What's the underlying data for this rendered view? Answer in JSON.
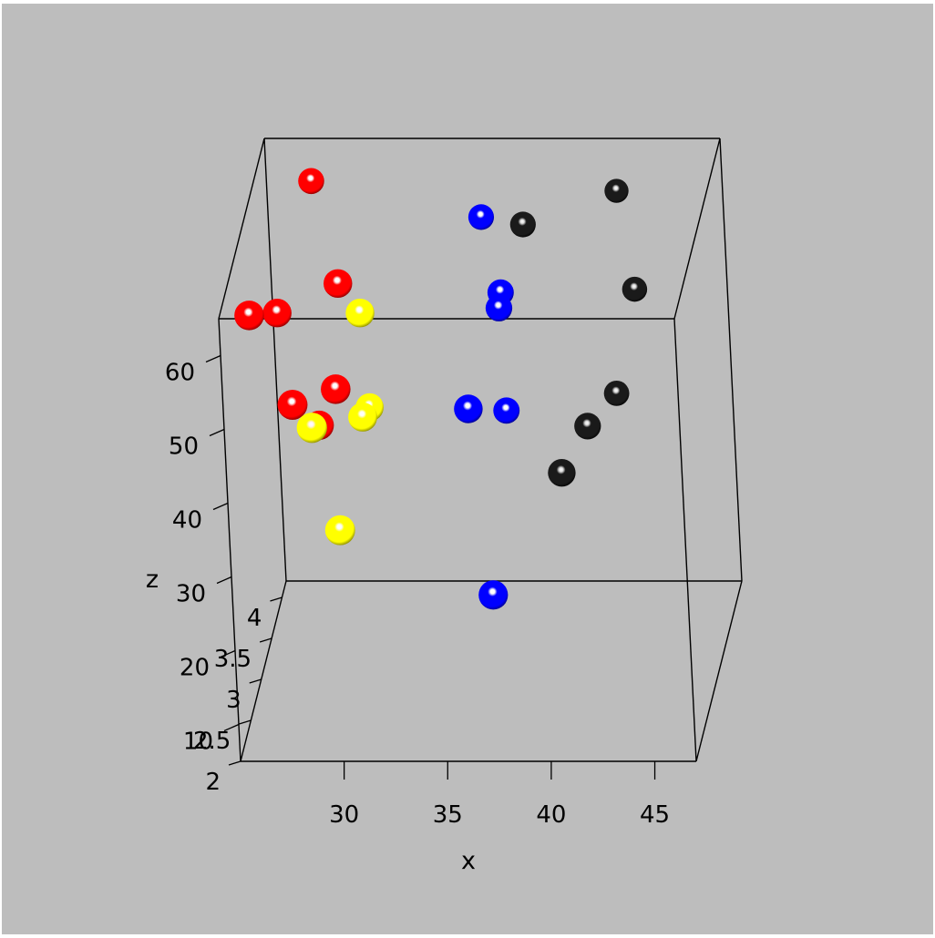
{
  "chart_data": {
    "type": "scatter",
    "title": "",
    "xlabel": "x",
    "ylabel": "",
    "zlabel": "z",
    "x_ticks": [
      "30",
      "35",
      "40",
      "45"
    ],
    "y_ticks": [
      "2",
      "2.5",
      "3",
      "3.5",
      "4"
    ],
    "z_ticks": [
      "10",
      "20",
      "30",
      "40",
      "50",
      "60"
    ],
    "xlim": [
      25,
      47
    ],
    "ylim": [
      2,
      4.2
    ],
    "zlim": [
      5,
      65
    ],
    "grid": false,
    "background": "#bdbdbd",
    "series": [
      {
        "color": "#ff0000",
        "points": [
          {
            "x": 28,
            "y": 3.5,
            "z": 67
          },
          {
            "x": 30,
            "y": 2.7,
            "z": 62
          },
          {
            "x": 26,
            "y": 2.4,
            "z": 61
          },
          {
            "x": 27,
            "y": 2.7,
            "z": 58
          },
          {
            "x": 30,
            "y": 2.4,
            "z": 51
          },
          {
            "x": 28,
            "y": 2.3,
            "z": 50
          },
          {
            "x": 29,
            "y": 2.5,
            "z": 45
          }
        ]
      },
      {
        "color": "#ffff00",
        "points": [
          {
            "x": 31,
            "y": 2.7,
            "z": 58
          },
          {
            "x": 29,
            "y": 2.2,
            "z": 48
          },
          {
            "x": 31,
            "y": 2.6,
            "z": 45
          },
          {
            "x": 31,
            "y": 2.9,
            "z": 43
          },
          {
            "x": 30,
            "y": 2.3,
            "z": 33
          }
        ]
      },
      {
        "color": "#0000ff",
        "points": [
          {
            "x": 36,
            "y": 3.6,
            "z": 61
          },
          {
            "x": 37,
            "y": 3.3,
            "z": 52
          },
          {
            "x": 37,
            "y": 3.4,
            "z": 53
          },
          {
            "x": 36,
            "y": 2.7,
            "z": 45
          },
          {
            "x": 37,
            "y": 3.4,
            "z": 37
          },
          {
            "x": 37,
            "y": 2.5,
            "z": 22
          }
        ]
      },
      {
        "color": "#000000",
        "points": [
          {
            "x": 38,
            "y": 3.6,
            "z": 60
          },
          {
            "x": 42,
            "y": 4.1,
            "z": 59
          },
          {
            "x": 43,
            "y": 3.8,
            "z": 49
          },
          {
            "x": 41,
            "y": 3.3,
            "z": 36
          },
          {
            "x": 42,
            "y": 3.7,
            "z": 36
          },
          {
            "x": 40,
            "y": 3.0,
            "z": 33
          }
        ]
      }
    ]
  }
}
